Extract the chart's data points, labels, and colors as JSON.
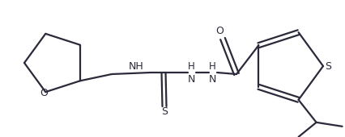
{
  "bg_color": "#ffffff",
  "line_color": "#2a2a3a",
  "line_width": 1.6,
  "figsize": [
    4.26,
    1.7
  ],
  "dpi": 100,
  "xlim": [
    0,
    426
  ],
  "ylim": [
    0,
    170
  ]
}
